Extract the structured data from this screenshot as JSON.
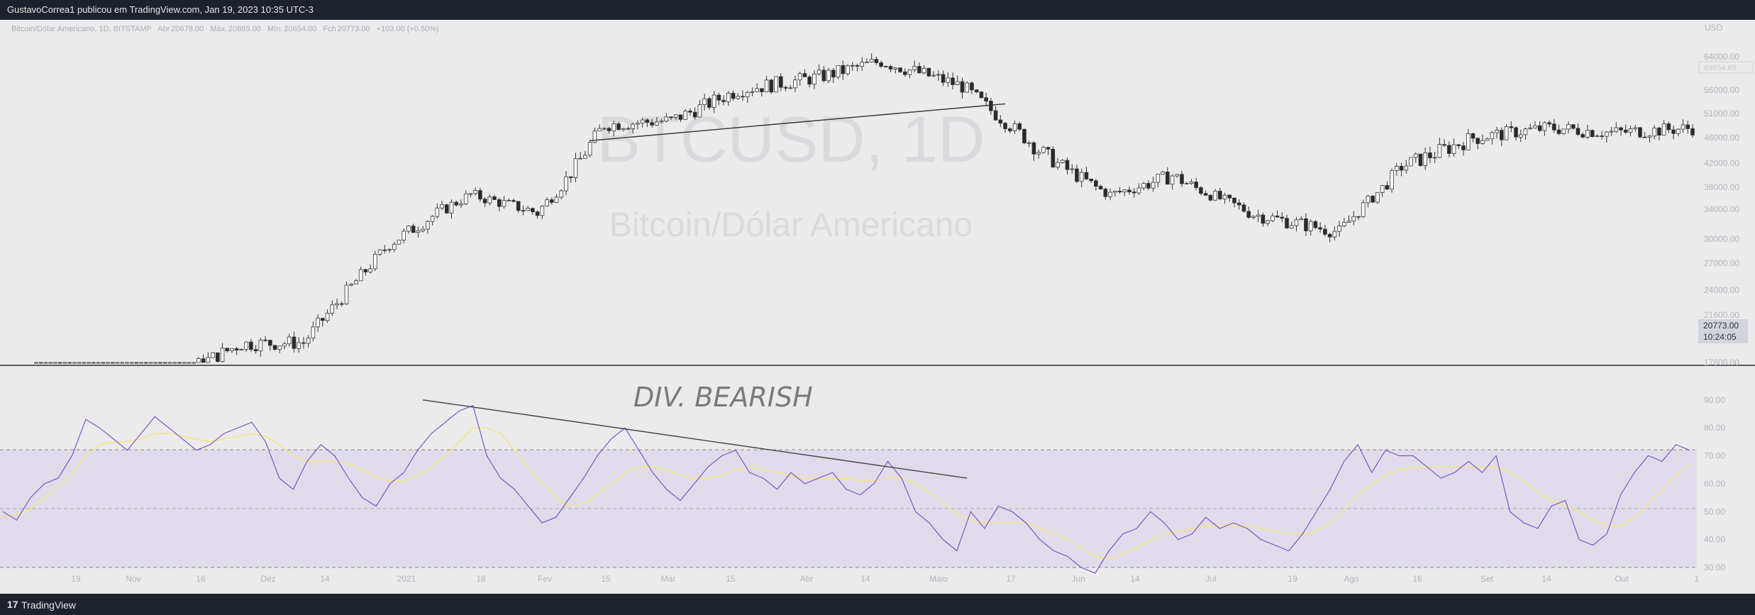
{
  "header": {
    "publish_text": "GustavoCorrea1 publicou em TradingView.com, Jan 19, 2023 10:35 UTC-3"
  },
  "footer": {
    "logo_mark": "17",
    "brand": "TradingView"
  },
  "colors": {
    "bg_outer": "#1e222d",
    "plot_bg": "#ebebeb",
    "candle_up": "#ffffff",
    "candle_down": "#2a2a2a",
    "wick": "#333333",
    "rsi_line": "#7e57c2",
    "rsi_ma": "#f0e68c",
    "rsi_band": "#e0dbea",
    "watermark": "#d9d9dd",
    "axis_text": "#b2b5be"
  },
  "legend": {
    "symbol": "Bitcoin/Dólar Americano, 1D, BITSTAMP",
    "o_label": "Abr",
    "o_value": "20678.00",
    "h_label": "Máx.",
    "h_value": "20865.00",
    "l_label": "Mín.",
    "l_value": "20654.00",
    "c_label": "Fch",
    "c_value": "20773.00",
    "change": "+103.00 (+0.50%)"
  },
  "watermark": {
    "ticker": "BTCUSD, 1D",
    "name": "Bitcoin/Dólar Americano"
  },
  "price_axis": {
    "currency": "USD",
    "ticks": [
      "64000.00",
      "56000.00",
      "51000.00",
      "46000.00",
      "42000.00",
      "38000.00",
      "34000.00",
      "30000.00",
      "27000.00",
      "24000.00",
      "21600.00",
      "17800.00"
    ],
    "faint_label": "63654.65",
    "last_price": "20773.00",
    "countdown": "10:24:05"
  },
  "rsi_axis": {
    "ticks": [
      "90.00",
      "80.00",
      "70.00",
      "60.00",
      "50.00",
      "40.00",
      "30.00"
    ]
  },
  "time_axis": {
    "labels": [
      "19",
      "Nov",
      "16",
      "Dez",
      "14",
      "2021",
      "18",
      "Fev",
      "15",
      "Mar",
      "15",
      "Abr",
      "14",
      "Maio",
      "17",
      "Jun",
      "14",
      "Jul",
      "19",
      "Ago",
      "16",
      "Set",
      "14",
      "Out",
      "1"
    ]
  },
  "annotation": {
    "text": "DIV. BEARISH"
  },
  "chart_data": [
    {
      "type": "candlestick",
      "title": "Bitcoin/Dólar Americano, 1D, BITSTAMP",
      "y_unit": "USD",
      "scale": "log",
      "ylim": [
        17800,
        66000
      ],
      "x_start": "2020-10-12",
      "x_end": "2021-10-01",
      "close_series_approx": {
        "dates": [
          "2020-10-19",
          "2020-11-01",
          "2020-11-16",
          "2020-12-01",
          "2020-12-14",
          "2021-01-01",
          "2021-01-18",
          "2021-02-01",
          "2021-02-15",
          "2021-03-01",
          "2021-03-15",
          "2021-04-01",
          "2021-04-14",
          "2021-05-01",
          "2021-05-17",
          "2021-06-01",
          "2021-06-14",
          "2021-07-01",
          "2021-07-19",
          "2021-08-01",
          "2021-08-16",
          "2021-09-01",
          "2021-09-14",
          "2021-10-01"
        ],
        "close": [
          11900,
          13800,
          16700,
          19200,
          19300,
          29400,
          36600,
          33500,
          48600,
          49500,
          56000,
          59000,
          62900,
          56900,
          44000,
          36600,
          39900,
          33300,
          30900,
          41400,
          46000,
          48000,
          47000,
          47900
        ]
      },
      "trendline": {
        "from_date": "2021-02-12",
        "from_price": 45500,
        "to_date": "2021-05-10",
        "to_price": 53000
      }
    },
    {
      "type": "line",
      "title": "RSI",
      "ylim": [
        28,
        94
      ],
      "levels": [
        70,
        50,
        30
      ],
      "series": [
        {
          "name": "RSI",
          "values": [
            50,
            47,
            55,
            60,
            62,
            70,
            83,
            80,
            76,
            72,
            78,
            84,
            80,
            76,
            72,
            74,
            78,
            80,
            82,
            75,
            62,
            58,
            68,
            74,
            70,
            62,
            55,
            52,
            60,
            64,
            72,
            78,
            82,
            86,
            88,
            70,
            62,
            58,
            52,
            46,
            48,
            55,
            62,
            70,
            76,
            80,
            72,
            64,
            58,
            54,
            60,
            66,
            70,
            72,
            64,
            62,
            58,
            64,
            60,
            62,
            64,
            58,
            56,
            60,
            68,
            62,
            50,
            46,
            40,
            36,
            50,
            44,
            52,
            50,
            46,
            40,
            36,
            34,
            30,
            28,
            36,
            42,
            44,
            50,
            46,
            40,
            42,
            48,
            44,
            46,
            44,
            40,
            38,
            36,
            42,
            50,
            58,
            68,
            74,
            64,
            72,
            70,
            70,
            66,
            62,
            64,
            68,
            64,
            70,
            50,
            46,
            44,
            52,
            54,
            40,
            38,
            42,
            56,
            64,
            70,
            68,
            74,
            72
          ]
        },
        {
          "name": "RSI-based MA",
          "values": [
            48,
            49,
            51,
            55,
            59,
            64,
            70,
            74,
            75,
            75,
            76,
            78,
            78,
            77,
            76,
            75,
            76,
            77,
            78,
            77,
            74,
            70,
            68,
            68,
            68,
            67,
            65,
            62,
            61,
            61,
            63,
            66,
            70,
            75,
            80,
            80,
            78,
            72,
            66,
            60,
            55,
            52,
            53,
            56,
            60,
            64,
            66,
            66,
            65,
            63,
            62,
            62,
            63,
            65,
            66,
            65,
            64,
            63,
            62,
            62,
            62,
            62,
            61,
            61,
            62,
            62,
            60,
            57,
            53,
            49,
            47,
            46,
            46,
            46,
            46,
            44,
            42,
            40,
            37,
            34,
            33,
            35,
            37,
            40,
            42,
            43,
            44,
            45,
            45,
            45,
            45,
            44,
            43,
            42,
            42,
            43,
            46,
            51,
            56,
            60,
            63,
            65,
            66,
            66,
            66,
            66,
            66,
            66,
            66,
            64,
            61,
            57,
            54,
            52,
            50,
            47,
            45,
            45,
            48,
            53,
            58,
            63,
            67
          ]
        }
      ],
      "divergence_line": {
        "from_date": "2021-01-08",
        "from_value": 90,
        "to_date": "2021-05-02",
        "to_value": 62
      }
    }
  ]
}
